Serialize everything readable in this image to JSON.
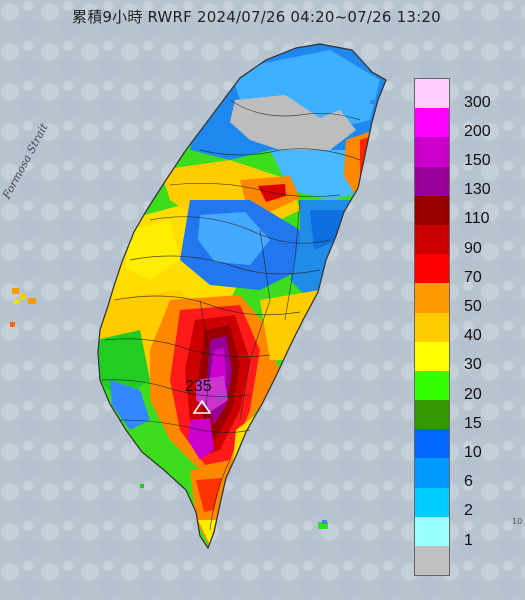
{
  "title": "累積9小時 RWRF 2024/07/26 04:20~07/26 13:20",
  "strait_label": "Formosa Strait",
  "peak": {
    "label": "235",
    "icon": "triangle-marker-icon"
  },
  "edge_text": "10",
  "legend": {
    "items": [
      {
        "label": "300",
        "color": "#ffccff"
      },
      {
        "label": "200",
        "color": "#ff00ff"
      },
      {
        "label": "150",
        "color": "#cc00cc"
      },
      {
        "label": "130",
        "color": "#990099"
      },
      {
        "label": "110",
        "color": "#990000"
      },
      {
        "label": "90",
        "color": "#cc0000"
      },
      {
        "label": "70",
        "color": "#ff0000"
      },
      {
        "label": "50",
        "color": "#ff9900"
      },
      {
        "label": "40",
        "color": "#ffcc00"
      },
      {
        "label": "30",
        "color": "#ffff00"
      },
      {
        "label": "20",
        "color": "#33ff00"
      },
      {
        "label": "15",
        "color": "#339900"
      },
      {
        "label": "10",
        "color": "#0066ff"
      },
      {
        "label": "6",
        "color": "#0099ff"
      },
      {
        "label": "2",
        "color": "#00ccff"
      },
      {
        "label": "1",
        "color": "#99ffff"
      },
      {
        "label": "",
        "color": "#c0c0c0"
      }
    ]
  }
}
